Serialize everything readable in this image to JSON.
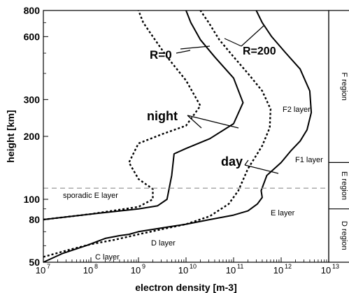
{
  "chart_data": {
    "type": "line",
    "title": "",
    "xlabel": "electron density [m-3]",
    "ylabel": "height [km]",
    "x_scale": "log",
    "y_scale": "log",
    "xlim": [
      10000000,
      10000000000000
    ],
    "ylim": [
      50,
      800
    ],
    "x_ticks": [
      {
        "base": "10",
        "exp": "7"
      },
      {
        "base": "10",
        "exp": "8"
      },
      {
        "base": "10",
        "exp": "9"
      },
      {
        "base": "10",
        "exp": "10"
      },
      {
        "base": "10",
        "exp": "11"
      },
      {
        "base": "10",
        "exp": "12"
      },
      {
        "base": "10",
        "exp": "13"
      }
    ],
    "y_ticks": [
      "50",
      "80",
      "100",
      "200",
      "300",
      "600",
      "800"
    ],
    "grid": false,
    "series": [
      {
        "key": "day_r200",
        "style": "solid",
        "points": [
          [
            10000000,
            50
          ],
          [
            25000000,
            55
          ],
          [
            79000000,
            60
          ],
          [
            200000000,
            65
          ],
          [
            398000000,
            67
          ],
          [
            631000000,
            68
          ],
          [
            1000000000,
            70
          ],
          [
            3160000000,
            73
          ],
          [
            10000000000,
            76
          ],
          [
            31600000000,
            80
          ],
          [
            100000000000,
            84
          ],
          [
            200000000000,
            88
          ],
          [
            316000000000,
            95
          ],
          [
            400000000000,
            102
          ],
          [
            380000000000,
            110
          ],
          [
            500000000000,
            130
          ],
          [
            1000000000000,
            150
          ],
          [
            1580000000000,
            170
          ],
          [
            2510000000000,
            190
          ],
          [
            3500000000000,
            215
          ],
          [
            4300000000000,
            260
          ],
          [
            4000000000000,
            330
          ],
          [
            2500000000000,
            420
          ],
          [
            1260000000000,
            500
          ],
          [
            630000000000,
            600
          ],
          [
            400000000000,
            700
          ],
          [
            300000000000,
            800
          ]
        ]
      },
      {
        "key": "day_r0",
        "style": "dotted",
        "points": [
          [
            10000000,
            53
          ],
          [
            31600000,
            57
          ],
          [
            100000000,
            61
          ],
          [
            316000000,
            64
          ],
          [
            1000000000,
            68
          ],
          [
            3160000000,
            72
          ],
          [
            10000000000,
            76
          ],
          [
            31600000000,
            83
          ],
          [
            79000000000,
            95
          ],
          [
            126000000000,
            110
          ],
          [
            200000000000,
            140
          ],
          [
            398000000000,
            180
          ],
          [
            575000000000,
            220
          ],
          [
            600000000000,
            270
          ],
          [
            400000000000,
            330
          ],
          [
            200000000000,
            400
          ],
          [
            100000000000,
            480
          ],
          [
            50000000000,
            580
          ],
          [
            30000000000,
            700
          ],
          [
            20000000000,
            800
          ]
        ]
      },
      {
        "key": "night_r200",
        "style": "solid",
        "points": [
          [
            10000000,
            80
          ],
          [
            100000000,
            85
          ],
          [
            1000000000,
            90
          ],
          [
            2500000000,
            93
          ],
          [
            3980000000,
            100
          ],
          [
            5000000000,
            130
          ],
          [
            5600000000,
            165
          ],
          [
            10000000000,
            175
          ],
          [
            31600000000,
            195
          ],
          [
            100000000000,
            230
          ],
          [
            158000000000,
            290
          ],
          [
            100000000000,
            380
          ],
          [
            40000000000,
            480
          ],
          [
            20000000000,
            580
          ],
          [
            12600000000,
            700
          ],
          [
            10000000000,
            800
          ]
        ]
      },
      {
        "key": "night_r0",
        "style": "dotted",
        "points": [
          [
            10000000,
            80
          ],
          [
            100000000,
            85
          ],
          [
            1000000000,
            92
          ],
          [
            2000000000,
            100
          ],
          [
            2000000000,
            112
          ],
          [
            1000000000,
            125
          ],
          [
            631000000,
            150
          ],
          [
            1000000000,
            185
          ],
          [
            3160000000,
            205
          ],
          [
            10000000000,
            225
          ],
          [
            20000000000,
            280
          ],
          [
            10000000000,
            370
          ],
          [
            3980000000,
            480
          ],
          [
            2000000000,
            600
          ],
          [
            1260000000,
            700
          ],
          [
            1000000000,
            800
          ]
        ]
      }
    ],
    "sporadic_e": {
      "height": 113,
      "label": "sporadic E layer"
    },
    "annotations": {
      "r0": "R=0",
      "r200": "R=200",
      "night": "night",
      "day": "day",
      "f2": "F2 layer",
      "f1": "F1 layer",
      "e": "E layer",
      "d": "D layer",
      "c": "C layer"
    },
    "regions": [
      {
        "key": "f",
        "label": "F region",
        "from": 150,
        "to": 800
      },
      {
        "key": "e",
        "label": "E region",
        "from": 90,
        "to": 150
      },
      {
        "key": "d",
        "label": "D region",
        "from": 50,
        "to": 90
      }
    ],
    "colors": {
      "curve": "#000000",
      "sporadic": "#999999",
      "axis": "#000000",
      "background": "#ffffff"
    }
  }
}
